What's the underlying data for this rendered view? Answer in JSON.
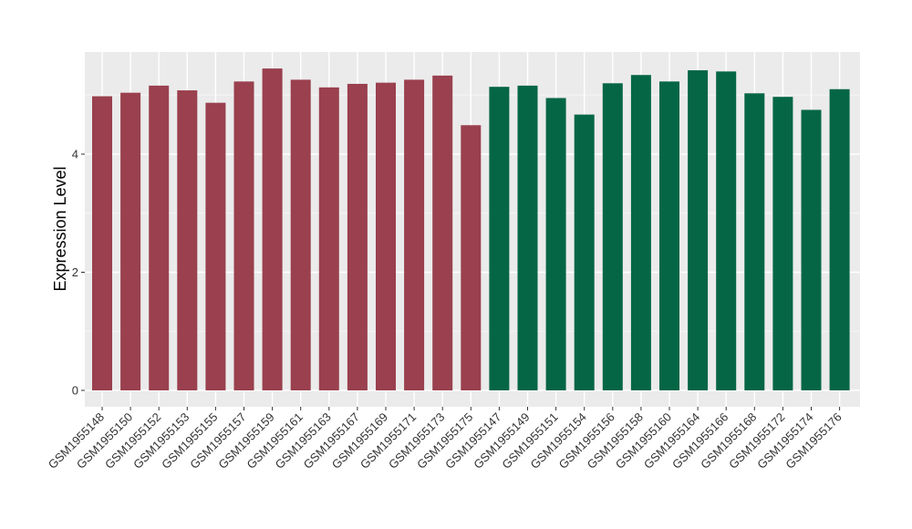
{
  "chart_data": {
    "type": "bar",
    "ylabel": "Expression Level",
    "xlabel": "",
    "ylim": [
      0,
      5.7
    ],
    "yticks": [
      0,
      2,
      4
    ],
    "grid": true,
    "background": "#EBEBEB",
    "groups": [
      {
        "color": "#9A404E",
        "samples": [
          "GSM1955148",
          "GSM1955150",
          "GSM1955152",
          "GSM1955153",
          "GSM1955155",
          "GSM1955157",
          "GSM1955159",
          "GSM1955161",
          "GSM1955163",
          "GSM1955167",
          "GSM1955169",
          "GSM1955171",
          "GSM1955173",
          "GSM1955175"
        ]
      },
      {
        "color": "#056646",
        "samples": [
          "GSM1955147",
          "GSM1955149",
          "GSM1955151",
          "GSM1955154",
          "GSM1955156",
          "GSM1955158",
          "GSM1955160",
          "GSM1955164",
          "GSM1955166",
          "GSM1955168",
          "GSM1955172",
          "GSM1955174",
          "GSM1955176"
        ]
      }
    ],
    "categories": [
      "GSM1955148",
      "GSM1955150",
      "GSM1955152",
      "GSM1955153",
      "GSM1955155",
      "GSM1955157",
      "GSM1955159",
      "GSM1955161",
      "GSM1955163",
      "GSM1955167",
      "GSM1955169",
      "GSM1955171",
      "GSM1955173",
      "GSM1955175",
      "GSM1955147",
      "GSM1955149",
      "GSM1955151",
      "GSM1955154",
      "GSM1955156",
      "GSM1955158",
      "GSM1955160",
      "GSM1955164",
      "GSM1955166",
      "GSM1955168",
      "GSM1955172",
      "GSM1955174",
      "GSM1955176"
    ],
    "values": [
      4.98,
      5.04,
      5.16,
      5.08,
      4.87,
      5.23,
      5.45,
      5.26,
      5.13,
      5.19,
      5.21,
      5.26,
      5.33,
      4.49,
      5.14,
      5.16,
      4.95,
      4.67,
      5.2,
      5.34,
      5.23,
      5.42,
      5.4,
      5.03,
      4.97,
      4.75,
      5.1
    ]
  }
}
